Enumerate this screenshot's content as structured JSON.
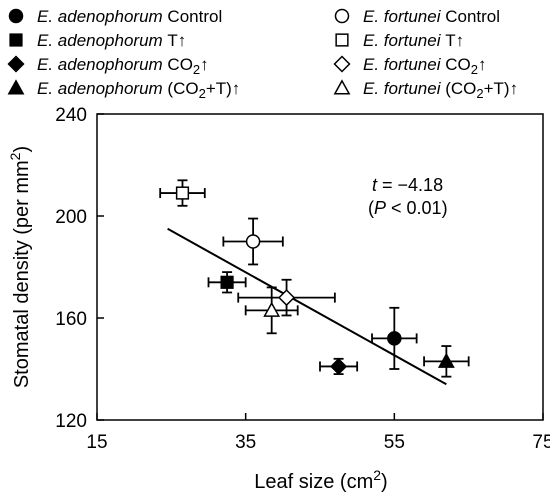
{
  "chart_data": {
    "type": "scatter",
    "xlabel": {
      "main": "Leaf size (cm",
      "sup": "2",
      "end": ")"
    },
    "ylabel": {
      "main": "Stomatal density (per mm",
      "sup": "2",
      "end": ")"
    },
    "xlim": [
      15,
      75
    ],
    "ylim": [
      120,
      240
    ],
    "xticks": [
      15,
      35,
      55,
      75
    ],
    "yticks": [
      120,
      160,
      200,
      240
    ],
    "grid": false,
    "legend_position": "top",
    "legend": [
      {
        "species": "E. adenophorum",
        "treatment": "Control",
        "sub": "",
        "tail": "",
        "marker": "circle",
        "fill": "#000000"
      },
      {
        "species": "E. fortunei",
        "treatment": "Control",
        "sub": "",
        "tail": "",
        "marker": "circle",
        "fill": "#ffffff"
      },
      {
        "species": "E. adenophorum",
        "treatment": "T↑",
        "sub": "",
        "tail": "",
        "marker": "square",
        "fill": "#000000"
      },
      {
        "species": "E. fortunei",
        "treatment": "T↑",
        "sub": "",
        "tail": "",
        "marker": "square",
        "fill": "#ffffff"
      },
      {
        "species": "E. adenophorum",
        "treatment": "CO",
        "sub": "2",
        "tail": "↑",
        "marker": "diamond",
        "fill": "#000000"
      },
      {
        "species": "E. fortunei",
        "treatment": "CO",
        "sub": "2",
        "tail": "↑",
        "marker": "diamond",
        "fill": "#ffffff"
      },
      {
        "species": "E. adenophorum",
        "treatment": "(CO",
        "sub": "2",
        "tail": "+T)↑",
        "marker": "triangle",
        "fill": "#000000"
      },
      {
        "species": "E. fortunei",
        "treatment": "(CO",
        "sub": "2",
        "tail": "+T)↑",
        "marker": "triangle",
        "fill": "#ffffff"
      }
    ],
    "series": [
      {
        "marker": "circle",
        "fill": "#000000",
        "x": 55,
        "y": 152,
        "xerr": 3,
        "yerr": 12
      },
      {
        "marker": "square",
        "fill": "#000000",
        "x": 32.5,
        "y": 174,
        "xerr": 2.5,
        "yerr": 4
      },
      {
        "marker": "diamond",
        "fill": "#000000",
        "x": 47.5,
        "y": 141,
        "xerr": 2.5,
        "yerr": 3
      },
      {
        "marker": "triangle",
        "fill": "#000000",
        "x": 62,
        "y": 143,
        "xerr": 3,
        "yerr": 6
      },
      {
        "marker": "circle",
        "fill": "#ffffff",
        "x": 36,
        "y": 190,
        "xerr": 4,
        "yerr": 9
      },
      {
        "marker": "square",
        "fill": "#ffffff",
        "x": 26.5,
        "y": 209,
        "xerr": 3,
        "yerr": 5
      },
      {
        "marker": "diamond",
        "fill": "#ffffff",
        "x": 40.5,
        "y": 168,
        "xerr": 6.5,
        "yerr": 7
      },
      {
        "marker": "triangle",
        "fill": "#ffffff",
        "x": 38.5,
        "y": 163,
        "xerr": 3.5,
        "yerr": 9
      }
    ],
    "regression_line": {
      "x": [
        24.5,
        62
      ],
      "y": [
        195,
        134
      ]
    },
    "annotation": {
      "t_label": "t",
      "t_value": " = −4.18",
      "p_open": "(",
      "p_label": "P",
      "p_value": " < 0.01)"
    }
  }
}
